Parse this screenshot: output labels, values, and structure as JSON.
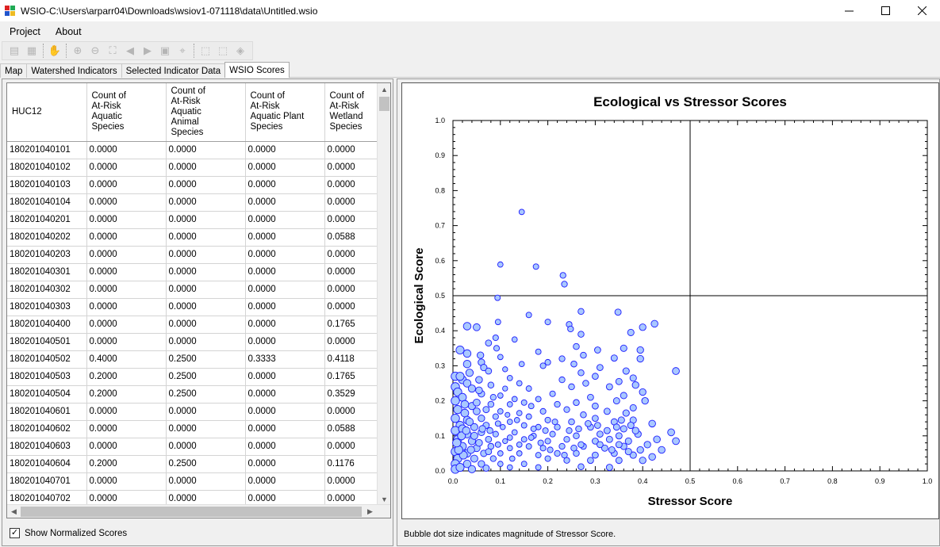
{
  "window": {
    "title": "WSIO-C:\\Users\\arparr04\\Downloads\\wsiov1-071118\\data\\Untitled.wsio"
  },
  "menu": [
    "Project",
    "About"
  ],
  "toolbar": {
    "icons": [
      "open-icon",
      "save-icon",
      "pan-icon",
      "zoom-in-icon",
      "zoom-out-icon",
      "zoom-extent-icon",
      "back-icon",
      "forward-icon",
      "zoom-selection-icon",
      "identify-icon",
      "select-icon",
      "select-area-icon",
      "select-poly-icon"
    ]
  },
  "tabs": [
    {
      "label": "Map",
      "active": false
    },
    {
      "label": "Watershed Indicators",
      "active": false
    },
    {
      "label": "Selected Indicator Data",
      "active": false
    },
    {
      "label": "WSIO Scores",
      "active": true
    }
  ],
  "table": {
    "columns": [
      "HUC12",
      "Count of\nAt-Risk\nAquatic\nSpecies",
      "Count of\nAt-Risk\nAquatic\nAnimal\nSpecies",
      "Count of\nAt-Risk\nAquatic Plant\nSpecies",
      "Count of\nAt-Risk\nWetland\nSpecies"
    ],
    "rows": [
      [
        "180201040101",
        "0.0000",
        "0.0000",
        "0.0000",
        "0.0000"
      ],
      [
        "180201040102",
        "0.0000",
        "0.0000",
        "0.0000",
        "0.0000"
      ],
      [
        "180201040103",
        "0.0000",
        "0.0000",
        "0.0000",
        "0.0000"
      ],
      [
        "180201040104",
        "0.0000",
        "0.0000",
        "0.0000",
        "0.0000"
      ],
      [
        "180201040201",
        "0.0000",
        "0.0000",
        "0.0000",
        "0.0000"
      ],
      [
        "180201040202",
        "0.0000",
        "0.0000",
        "0.0000",
        "0.0588"
      ],
      [
        "180201040203",
        "0.0000",
        "0.0000",
        "0.0000",
        "0.0000"
      ],
      [
        "180201040301",
        "0.0000",
        "0.0000",
        "0.0000",
        "0.0000"
      ],
      [
        "180201040302",
        "0.0000",
        "0.0000",
        "0.0000",
        "0.0000"
      ],
      [
        "180201040303",
        "0.0000",
        "0.0000",
        "0.0000",
        "0.0000"
      ],
      [
        "180201040400",
        "0.0000",
        "0.0000",
        "0.0000",
        "0.1765"
      ],
      [
        "180201040501",
        "0.0000",
        "0.0000",
        "0.0000",
        "0.0000"
      ],
      [
        "180201040502",
        "0.4000",
        "0.2500",
        "0.3333",
        "0.4118"
      ],
      [
        "180201040503",
        "0.2000",
        "0.2500",
        "0.0000",
        "0.1765"
      ],
      [
        "180201040504",
        "0.2000",
        "0.2500",
        "0.0000",
        "0.3529"
      ],
      [
        "180201040601",
        "0.0000",
        "0.0000",
        "0.0000",
        "0.0000"
      ],
      [
        "180201040602",
        "0.0000",
        "0.0000",
        "0.0000",
        "0.0588"
      ],
      [
        "180201040603",
        "0.0000",
        "0.0000",
        "0.0000",
        "0.0000"
      ],
      [
        "180201040604",
        "0.2000",
        "0.2500",
        "0.0000",
        "0.1176"
      ],
      [
        "180201040701",
        "0.0000",
        "0.0000",
        "0.0000",
        "0.0000"
      ],
      [
        "180201040702",
        "0.0000",
        "0.0000",
        "0.0000",
        "0.0000"
      ]
    ]
  },
  "show_normalized": {
    "label": "Show Normalized Scores",
    "checked": true
  },
  "footnote": "Bubble dot size indicates magnitude of Stressor Score.",
  "chart_data": {
    "type": "scatter",
    "title": "Ecological vs Stressor Scores",
    "xlabel": "Stressor Score",
    "ylabel": "Ecological Score",
    "xlim": [
      0,
      1.0
    ],
    "ylim": [
      0,
      1.0
    ],
    "xticks": [
      "0.0",
      "0.1",
      "0.2",
      "0.3",
      "0.4",
      "0.5",
      "0.6",
      "0.7",
      "0.8",
      "0.9",
      "1.0"
    ],
    "yticks": [
      "0.0",
      "0.1",
      "0.2",
      "0.3",
      "0.4",
      "0.5",
      "0.6",
      "0.7",
      "0.8",
      "0.9",
      "1.0"
    ],
    "reference_lines": {
      "x": 0.5,
      "y": 0.5
    },
    "marker_color": "#a9c8ff",
    "marker_edge": "#1c1cff",
    "points": [
      [
        0.145,
        0.739
      ],
      [
        0.1,
        0.589
      ],
      [
        0.175,
        0.583
      ],
      [
        0.232,
        0.558
      ],
      [
        0.235,
        0.533
      ],
      [
        0.094,
        0.494
      ],
      [
        0.27,
        0.455
      ],
      [
        0.16,
        0.445
      ],
      [
        0.348,
        0.453
      ],
      [
        0.095,
        0.425
      ],
      [
        0.2,
        0.425
      ],
      [
        0.245,
        0.418
      ],
      [
        0.248,
        0.405
      ],
      [
        0.03,
        0.413
      ],
      [
        0.05,
        0.41
      ],
      [
        0.425,
        0.42
      ],
      [
        0.4,
        0.41
      ],
      [
        0.375,
        0.395
      ],
      [
        0.09,
        0.38
      ],
      [
        0.27,
        0.39
      ],
      [
        0.13,
        0.375
      ],
      [
        0.075,
        0.365
      ],
      [
        0.092,
        0.35
      ],
      [
        0.305,
        0.345
      ],
      [
        0.18,
        0.34
      ],
      [
        0.015,
        0.345
      ],
      [
        0.03,
        0.335
      ],
      [
        0.058,
        0.33
      ],
      [
        0.26,
        0.355
      ],
      [
        0.36,
        0.35
      ],
      [
        0.395,
        0.345
      ],
      [
        0.1,
        0.325
      ],
      [
        0.03,
        0.305
      ],
      [
        0.06,
        0.31
      ],
      [
        0.2,
        0.31
      ],
      [
        0.23,
        0.32
      ],
      [
        0.275,
        0.33
      ],
      [
        0.34,
        0.322
      ],
      [
        0.395,
        0.32
      ],
      [
        0.19,
        0.3
      ],
      [
        0.065,
        0.295
      ],
      [
        0.11,
        0.29
      ],
      [
        0.145,
        0.305
      ],
      [
        0.255,
        0.305
      ],
      [
        0.31,
        0.295
      ],
      [
        0.035,
        0.28
      ],
      [
        0.075,
        0.285
      ],
      [
        0.47,
        0.285
      ],
      [
        0.365,
        0.285
      ],
      [
        0.27,
        0.28
      ],
      [
        0.005,
        0.27
      ],
      [
        0.02,
        0.26
      ],
      [
        0.03,
        0.25
      ],
      [
        0.055,
        0.26
      ],
      [
        0.12,
        0.265
      ],
      [
        0.14,
        0.25
      ],
      [
        0.23,
        0.26
      ],
      [
        0.3,
        0.27
      ],
      [
        0.35,
        0.255
      ],
      [
        0.38,
        0.265
      ],
      [
        0.005,
        0.24
      ],
      [
        0.01,
        0.225
      ],
      [
        0.04,
        0.235
      ],
      [
        0.08,
        0.245
      ],
      [
        0.16,
        0.235
      ],
      [
        0.25,
        0.24
      ],
      [
        0.33,
        0.24
      ],
      [
        0.385,
        0.245
      ],
      [
        0.28,
        0.25
      ],
      [
        0.21,
        0.22
      ],
      [
        0.1,
        0.215
      ],
      [
        0.06,
        0.22
      ],
      [
        0.02,
        0.21
      ],
      [
        0.005,
        0.2
      ],
      [
        0.18,
        0.205
      ],
      [
        0.29,
        0.21
      ],
      [
        0.36,
        0.215
      ],
      [
        0.4,
        0.225
      ],
      [
        0.405,
        0.2
      ],
      [
        0.345,
        0.2
      ],
      [
        0.15,
        0.195
      ],
      [
        0.12,
        0.19
      ],
      [
        0.04,
        0.185
      ],
      [
        0.08,
        0.19
      ],
      [
        0.22,
        0.19
      ],
      [
        0.26,
        0.195
      ],
      [
        0.3,
        0.185
      ],
      [
        0.38,
        0.18
      ],
      [
        0.01,
        0.175
      ],
      [
        0.025,
        0.165
      ],
      [
        0.05,
        0.17
      ],
      [
        0.1,
        0.17
      ],
      [
        0.14,
        0.165
      ],
      [
        0.19,
        0.17
      ],
      [
        0.24,
        0.175
      ],
      [
        0.325,
        0.17
      ],
      [
        0.365,
        0.165
      ],
      [
        0.275,
        0.16
      ],
      [
        0.16,
        0.155
      ],
      [
        0.09,
        0.155
      ],
      [
        0.06,
        0.15
      ],
      [
        0.03,
        0.145
      ],
      [
        0.005,
        0.15
      ],
      [
        0.12,
        0.14
      ],
      [
        0.2,
        0.145
      ],
      [
        0.25,
        0.14
      ],
      [
        0.3,
        0.15
      ],
      [
        0.34,
        0.14
      ],
      [
        0.38,
        0.145
      ],
      [
        0.42,
        0.135
      ],
      [
        0.015,
        0.13
      ],
      [
        0.045,
        0.125
      ],
      [
        0.07,
        0.13
      ],
      [
        0.105,
        0.125
      ],
      [
        0.15,
        0.13
      ],
      [
        0.18,
        0.125
      ],
      [
        0.22,
        0.125
      ],
      [
        0.29,
        0.125
      ],
      [
        0.36,
        0.12
      ],
      [
        0.46,
        0.11
      ],
      [
        0.005,
        0.115
      ],
      [
        0.03,
        0.105
      ],
      [
        0.06,
        0.11
      ],
      [
        0.09,
        0.105
      ],
      [
        0.13,
        0.11
      ],
      [
        0.17,
        0.1
      ],
      [
        0.21,
        0.105
      ],
      [
        0.26,
        0.1
      ],
      [
        0.31,
        0.105
      ],
      [
        0.35,
        0.1
      ],
      [
        0.39,
        0.105
      ],
      [
        0.43,
        0.09
      ],
      [
        0.47,
        0.085
      ],
      [
        0.01,
        0.09
      ],
      [
        0.04,
        0.085
      ],
      [
        0.075,
        0.09
      ],
      [
        0.11,
        0.085
      ],
      [
        0.15,
        0.09
      ],
      [
        0.2,
        0.085
      ],
      [
        0.24,
        0.09
      ],
      [
        0.3,
        0.085
      ],
      [
        0.33,
        0.09
      ],
      [
        0.37,
        0.085
      ],
      [
        0.41,
        0.075
      ],
      [
        0.02,
        0.07
      ],
      [
        0.05,
        0.065
      ],
      [
        0.08,
        0.07
      ],
      [
        0.12,
        0.065
      ],
      [
        0.16,
        0.07
      ],
      [
        0.19,
        0.065
      ],
      [
        0.23,
        0.07
      ],
      [
        0.275,
        0.07
      ],
      [
        0.32,
        0.065
      ],
      [
        0.36,
        0.07
      ],
      [
        0.395,
        0.06
      ],
      [
        0.44,
        0.06
      ],
      [
        0.005,
        0.055
      ],
      [
        0.03,
        0.05
      ],
      [
        0.065,
        0.05
      ],
      [
        0.1,
        0.05
      ],
      [
        0.14,
        0.05
      ],
      [
        0.18,
        0.045
      ],
      [
        0.22,
        0.05
      ],
      [
        0.26,
        0.05
      ],
      [
        0.3,
        0.045
      ],
      [
        0.34,
        0.05
      ],
      [
        0.38,
        0.045
      ],
      [
        0.42,
        0.04
      ],
      [
        0.01,
        0.035
      ],
      [
        0.045,
        0.035
      ],
      [
        0.085,
        0.035
      ],
      [
        0.125,
        0.035
      ],
      [
        0.2,
        0.035
      ],
      [
        0.24,
        0.03
      ],
      [
        0.29,
        0.03
      ],
      [
        0.35,
        0.03
      ],
      [
        0.4,
        0.03
      ],
      [
        0.005,
        0.02
      ],
      [
        0.03,
        0.02
      ],
      [
        0.06,
        0.02
      ],
      [
        0.1,
        0.02
      ],
      [
        0.15,
        0.02
      ],
      [
        0.005,
        0.005
      ],
      [
        0.015,
        0.01
      ],
      [
        0.04,
        0.005
      ],
      [
        0.07,
        0.008
      ],
      [
        0.12,
        0.01
      ],
      [
        0.18,
        0.01
      ],
      [
        0.27,
        0.012
      ],
      [
        0.33,
        0.01
      ],
      [
        0.02,
        0.12
      ],
      [
        0.035,
        0.14
      ],
      [
        0.05,
        0.195
      ],
      [
        0.07,
        0.175
      ],
      [
        0.085,
        0.21
      ],
      [
        0.11,
        0.235
      ],
      [
        0.13,
        0.205
      ],
      [
        0.165,
        0.185
      ],
      [
        0.045,
        0.1
      ],
      [
        0.095,
        0.135
      ],
      [
        0.025,
        0.19
      ],
      [
        0.055,
        0.23
      ],
      [
        0.015,
        0.27
      ],
      [
        0.062,
        0.12
      ],
      [
        0.078,
        0.115
      ],
      [
        0.115,
        0.16
      ],
      [
        0.135,
        0.145
      ],
      [
        0.17,
        0.12
      ],
      [
        0.195,
        0.115
      ],
      [
        0.215,
        0.14
      ],
      [
        0.245,
        0.115
      ],
      [
        0.265,
        0.12
      ],
      [
        0.285,
        0.135
      ],
      [
        0.305,
        0.13
      ],
      [
        0.325,
        0.115
      ],
      [
        0.345,
        0.125
      ],
      [
        0.355,
        0.145
      ],
      [
        0.375,
        0.13
      ],
      [
        0.385,
        0.115
      ],
      [
        0.27,
        0.075
      ],
      [
        0.255,
        0.065
      ],
      [
        0.31,
        0.075
      ],
      [
        0.335,
        0.06
      ],
      [
        0.35,
        0.075
      ],
      [
        0.37,
        0.055
      ],
      [
        0.235,
        0.045
      ],
      [
        0.205,
        0.06
      ],
      [
        0.185,
        0.08
      ],
      [
        0.165,
        0.095
      ],
      [
        0.14,
        0.075
      ],
      [
        0.12,
        0.095
      ],
      [
        0.095,
        0.075
      ],
      [
        0.075,
        0.055
      ],
      [
        0.055,
        0.08
      ],
      [
        0.038,
        0.06
      ],
      [
        0.022,
        0.045
      ],
      [
        0.012,
        0.06
      ],
      [
        0.008,
        0.08
      ],
      [
        0.018,
        0.1
      ],
      [
        0.028,
        0.115
      ]
    ]
  }
}
